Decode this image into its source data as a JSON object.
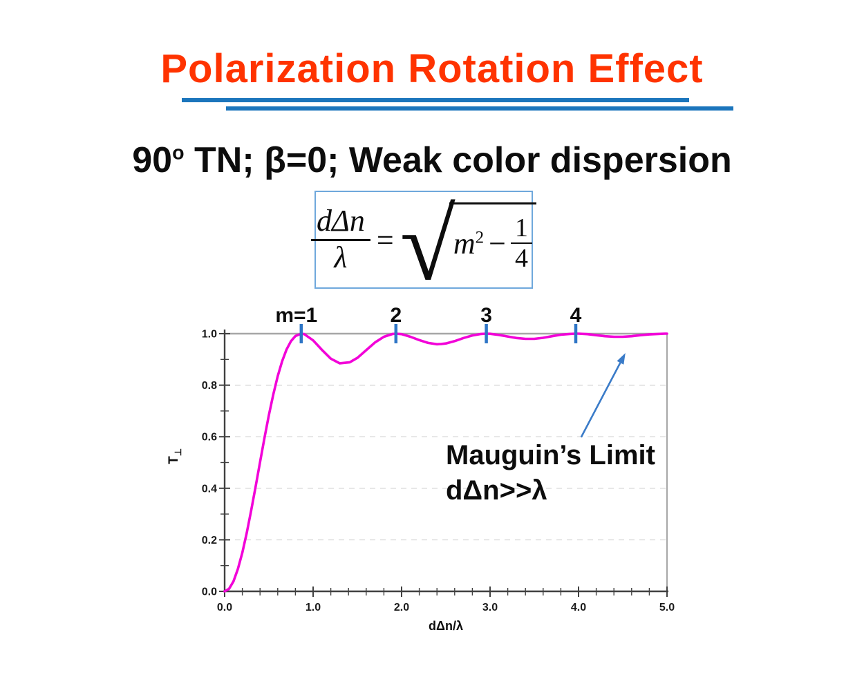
{
  "slide": {
    "title": "Polarization Rotation Effect",
    "subtitle": {
      "prefix": "90",
      "sup": "o",
      "rest": " TN; β=0; Weak color dispersion"
    },
    "formula": {
      "numerator": "dΔn",
      "denominator": "λ",
      "equals": "=",
      "radical_sign": "√",
      "sqrt_var": "m",
      "sqrt_exp": "2",
      "minus": "−",
      "fraction_num": "1",
      "fraction_den": "4"
    }
  },
  "colors": {
    "title_red": "#ff3300",
    "underline_blue": "#1b75bc",
    "equation_box_border": "#6fa8dc",
    "curve_magenta": "#f203d8",
    "m_marker_blue": "#2e75c6",
    "arrow_blue": "#3a7bc8",
    "axis_dark": "#404040",
    "top_gridline_gray": "#a6a6a6",
    "dashed_gridline_gray": "#dcdcdc",
    "text_black": "#0d0d0d"
  },
  "chart_data": {
    "type": "line",
    "title": "",
    "xlabel": "dΔn/λ",
    "ylabel": "T⊥",
    "ylabel_main": "T",
    "ylabel_sub": "⊥",
    "xlim": [
      0,
      5
    ],
    "ylim": [
      0,
      1
    ],
    "grid": "horizontal-dashed",
    "legend": "none",
    "x_major_ticks": [
      {
        "value": 0,
        "label": "0.0"
      },
      {
        "value": 1,
        "label": "1.0"
      },
      {
        "value": 2,
        "label": "2.0"
      },
      {
        "value": 3,
        "label": "3.0"
      },
      {
        "value": 4,
        "label": "4.0"
      },
      {
        "value": 5,
        "label": "5.0"
      }
    ],
    "x_minor_step": 0.2,
    "y_major_ticks": [
      {
        "value": 0.0,
        "label": "0.0"
      },
      {
        "value": 0.2,
        "label": "0.2"
      },
      {
        "value": 0.4,
        "label": "0.4"
      },
      {
        "value": 0.6,
        "label": "0.6"
      },
      {
        "value": 0.8,
        "label": "0.8"
      },
      {
        "value": 1.0,
        "label": "1.0"
      }
    ],
    "y_minor_step": 0.1,
    "gridlines": {
      "dashed_at": [
        0.2,
        0.4,
        0.6,
        0.8
      ],
      "solid_at": [
        1.0
      ]
    },
    "m_markers": [
      {
        "label": "m=1",
        "x": 0.866
      },
      {
        "label": "2",
        "x": 1.936
      },
      {
        "label": "3",
        "x": 2.958
      },
      {
        "label": "4",
        "x": 3.969
      }
    ],
    "annotation": {
      "line1": "Mauguin’s Limit",
      "line2": "dΔn>>λ",
      "arrow": {
        "from": [
          4.03,
          0.598
        ],
        "to": [
          4.53,
          0.925
        ]
      }
    },
    "series": [
      {
        "color": "#f203d8",
        "points": [
          [
            0.0,
            0.0
          ],
          [
            0.05,
            0.01
          ],
          [
            0.1,
            0.039
          ],
          [
            0.15,
            0.087
          ],
          [
            0.2,
            0.15
          ],
          [
            0.25,
            0.227
          ],
          [
            0.3,
            0.314
          ],
          [
            0.35,
            0.406
          ],
          [
            0.4,
            0.501
          ],
          [
            0.45,
            0.595
          ],
          [
            0.5,
            0.684
          ],
          [
            0.55,
            0.764
          ],
          [
            0.6,
            0.835
          ],
          [
            0.65,
            0.893
          ],
          [
            0.7,
            0.939
          ],
          [
            0.75,
            0.971
          ],
          [
            0.8,
            0.991
          ],
          [
            0.866,
            1.0
          ],
          [
            0.9,
            0.998
          ],
          [
            1.0,
            0.974
          ],
          [
            1.1,
            0.937
          ],
          [
            1.2,
            0.903
          ],
          [
            1.3,
            0.885
          ],
          [
            1.414,
            0.889
          ],
          [
            1.5,
            0.906
          ],
          [
            1.6,
            0.936
          ],
          [
            1.7,
            0.966
          ],
          [
            1.8,
            0.988
          ],
          [
            1.9,
            0.999
          ],
          [
            1.936,
            1.0
          ],
          [
            2.0,
            0.998
          ],
          [
            2.1,
            0.988
          ],
          [
            2.2,
            0.975
          ],
          [
            2.3,
            0.964
          ],
          [
            2.4,
            0.959
          ],
          [
            2.449,
            0.96
          ],
          [
            2.5,
            0.962
          ],
          [
            2.6,
            0.971
          ],
          [
            2.7,
            0.983
          ],
          [
            2.8,
            0.993
          ],
          [
            2.9,
            0.999
          ],
          [
            2.958,
            1.0
          ],
          [
            3.0,
            0.9995
          ],
          [
            3.1,
            0.995
          ],
          [
            3.2,
            0.989
          ],
          [
            3.3,
            0.983
          ],
          [
            3.4,
            0.98
          ],
          [
            3.464,
            0.98
          ],
          [
            3.5,
            0.98
          ],
          [
            3.6,
            0.984
          ],
          [
            3.7,
            0.99
          ],
          [
            3.8,
            0.996
          ],
          [
            3.9,
            0.999
          ],
          [
            3.969,
            1.0
          ],
          [
            4.0,
            0.9999
          ],
          [
            4.1,
            0.998
          ],
          [
            4.2,
            0.994
          ],
          [
            4.3,
            0.99
          ],
          [
            4.4,
            0.988
          ],
          [
            4.472,
            0.988
          ],
          [
            4.5,
            0.988
          ],
          [
            4.6,
            0.99
          ],
          [
            4.7,
            0.994
          ],
          [
            4.8,
            0.997
          ],
          [
            4.9,
            0.999
          ],
          [
            4.975,
            1.0
          ],
          [
            5.0,
            1.0
          ]
        ]
      }
    ]
  }
}
